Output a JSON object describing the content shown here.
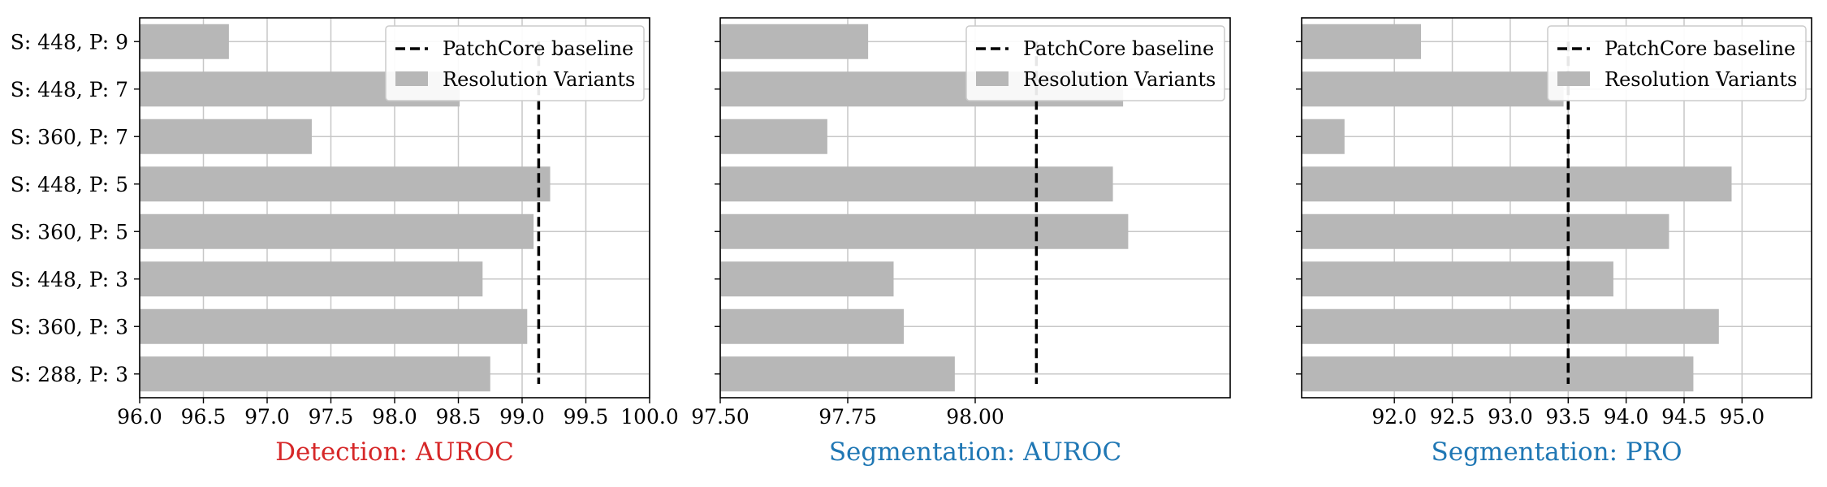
{
  "legend": {
    "baseline_label": "PatchCore baseline",
    "variants_label": "Resolution Variants"
  },
  "colors": {
    "bar": "#b7b7b7",
    "grid": "#c7c7c7",
    "baseline": "#000000",
    "title_red": "#d62728",
    "title_blue": "#1f77b4"
  },
  "chart_data": [
    {
      "type": "bar",
      "orientation": "horizontal",
      "title": "Detection: AUROC",
      "title_color": "#d62728",
      "categories": [
        "S: 448, P: 9",
        "S: 448, P: 7",
        "S: 360, P: 7",
        "S: 448, P: 5",
        "S: 360, P: 5",
        "S: 448, P: 3",
        "S: 360, P: 3",
        "S: 288, P: 3"
      ],
      "values": [
        96.7,
        98.51,
        97.35,
        99.22,
        99.09,
        98.69,
        99.04,
        98.75
      ],
      "baseline": 99.13,
      "xlim": [
        96.0,
        100.0
      ],
      "xticks": [
        "96.0",
        "96.5",
        "97.0",
        "97.5",
        "98.0",
        "98.5",
        "99.0",
        "99.5",
        "100.0"
      ],
      "show_ytick_labels": true,
      "grid": true,
      "legend_position": "upper right"
    },
    {
      "type": "bar",
      "orientation": "horizontal",
      "title": "Segmentation: AUROC",
      "title_color": "#1f77b4",
      "categories": [
        "S: 448, P: 9",
        "S: 448, P: 7",
        "S: 360, P: 7",
        "S: 448, P: 5",
        "S: 360, P: 5",
        "S: 448, P: 3",
        "S: 360, P: 3",
        "S: 288, P: 3"
      ],
      "values": [
        97.79,
        98.29,
        97.71,
        98.27,
        98.3,
        97.84,
        97.86,
        97.96
      ],
      "baseline": 98.12,
      "xlim": [
        97.5,
        98.5
      ],
      "xticks": [
        "97.50",
        "97.75",
        "98.00"
      ],
      "show_ytick_labels": false,
      "grid": true,
      "legend_position": "upper right"
    },
    {
      "type": "bar",
      "orientation": "horizontal",
      "title": "Segmentation: PRO",
      "title_color": "#1f77b4",
      "categories": [
        "S: 448, P: 9",
        "S: 448, P: 7",
        "S: 360, P: 7",
        "S: 448, P: 5",
        "S: 360, P: 5",
        "S: 448, P: 3",
        "S: 360, P: 3",
        "S: 288, P: 3"
      ],
      "values": [
        92.23,
        93.46,
        91.57,
        94.91,
        94.37,
        93.89,
        94.8,
        94.58
      ],
      "baseline": 93.5,
      "xlim": [
        91.2,
        95.6
      ],
      "xticks": [
        "92.0",
        "92.5",
        "93.0",
        "93.5",
        "94.0",
        "94.5",
        "95.0"
      ],
      "show_ytick_labels": false,
      "grid": true,
      "legend_position": "upper right"
    }
  ]
}
